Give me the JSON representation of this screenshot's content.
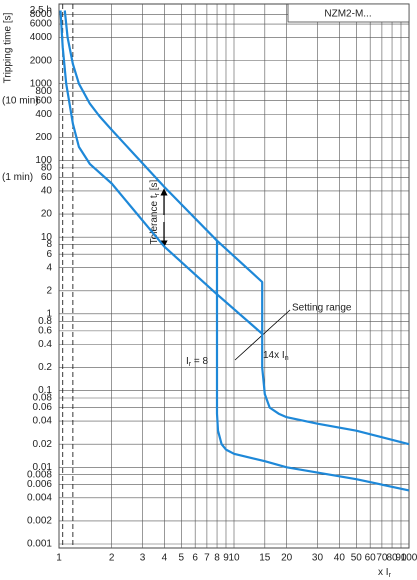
{
  "chart_data": {
    "type": "line",
    "log_x": true,
    "log_y": true,
    "grid": true,
    "y_label": "Tripping time [s]",
    "x_label": "x I",
    "x_label_sub": "r",
    "box_label": "NZM2-M...",
    "xlim": [
      1,
      100
    ],
    "ylim": [
      0.001,
      10000
    ],
    "xticks": [
      1,
      2,
      3,
      4,
      5,
      6,
      7,
      8,
      9,
      10,
      15,
      20,
      30,
      40,
      50,
      60,
      70,
      80,
      90,
      100
    ],
    "yticks": [
      8000,
      6000,
      4000,
      2000,
      1000,
      800,
      600,
      400,
      200,
      100,
      80,
      60,
      40,
      20,
      10,
      8,
      6,
      4,
      2,
      1,
      0.8,
      0.6,
      0.4,
      0.2,
      0.1,
      0.08,
      0.06,
      0.04,
      0.02,
      0.01,
      0.008,
      0.006,
      0.004,
      0.002,
      0.001
    ],
    "y_annotations": [
      {
        "value": 9000,
        "label": "2.5 h"
      },
      {
        "value": 600,
        "label": "(10 min)"
      },
      {
        "value": 60,
        "label": "(1 min)"
      }
    ],
    "dashed_x": [
      1.05,
      1.2
    ],
    "series": [
      {
        "color": "#1e88d8",
        "x": [
          1.08,
          1.12,
          1.2,
          1.3,
          1.5,
          1.7,
          2,
          4,
          8,
          14.5,
          14.5,
          15,
          16,
          18,
          20,
          30,
          50,
          100
        ],
        "values": [
          9000,
          4000,
          1800,
          1000,
          550,
          380,
          250,
          45,
          9,
          2.6,
          0.2,
          0.09,
          0.06,
          0.05,
          0.045,
          0.037,
          0.03,
          0.02
        ]
      },
      {
        "color": "#1e88d8",
        "x": [
          1.02,
          1.05,
          1.1,
          1.2,
          1.3,
          1.5,
          2,
          4,
          8,
          14.5
        ],
        "values": [
          9000,
          3000,
          1000,
          300,
          150,
          90,
          50,
          7.5,
          1.8,
          0.55
        ]
      },
      {
        "color": "#1e88d8",
        "x": [
          8,
          8,
          8.1,
          8.5,
          9,
          10,
          15,
          20,
          50,
          100
        ],
        "values": [
          9,
          0.05,
          0.03,
          0.02,
          0.017,
          0.015,
          0.012,
          0.01,
          0.007,
          0.005
        ]
      }
    ],
    "annotations": {
      "setting_range": "Setting range",
      "ir_label": "I",
      "ir_sub": "r",
      "ir_value": " = 8",
      "in_label": "14x I",
      "in_sub": "n",
      "tolerance": "Tolerance t",
      "tolerance_sub": "r",
      "tolerance_suffix": " [s]"
    }
  }
}
